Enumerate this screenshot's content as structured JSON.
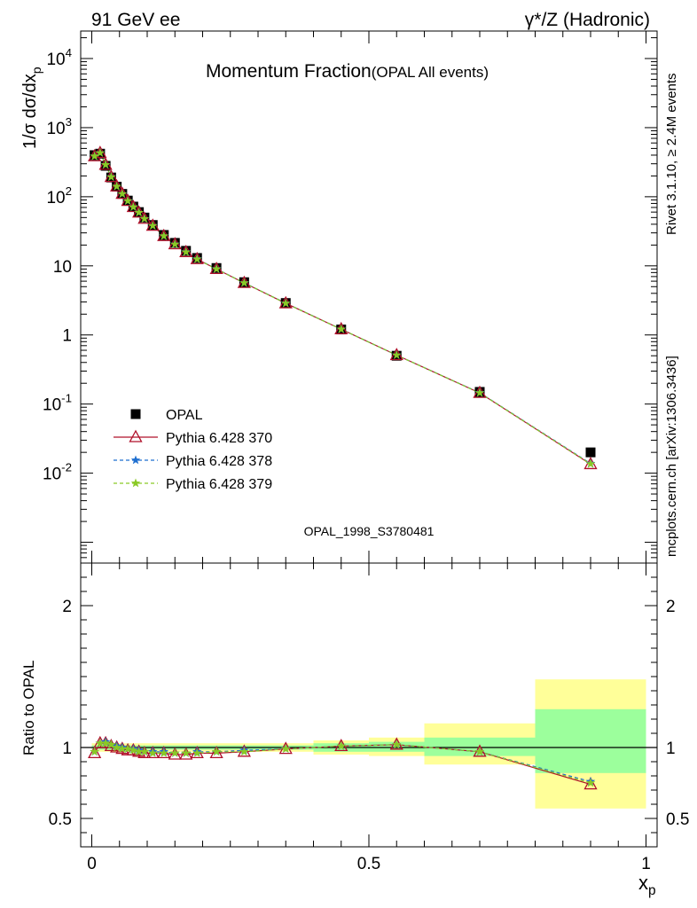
{
  "header": {
    "left": "91 GeV ee",
    "right": "γ*/Z (Hadronic)"
  },
  "side_labels": {
    "top": "Rivet 3.1.10, ≥ 2.4M events",
    "bottom": "mcplots.cern.ch [arXiv:1306.3436]"
  },
  "chart_data": [
    {
      "type": "scatter",
      "title": "Momentum Fraction",
      "subtitle": "(OPAL All events)",
      "watermark": "OPAL_1998_S3780481",
      "ylabel": "1/σ dσ/dx_p",
      "xlim": [
        -0.02,
        1.02
      ],
      "ylim": [
        0.0005,
        25000
      ],
      "yscale": "log",
      "ytick_labels": [
        "10^-2",
        "10^-1",
        "1",
        "10",
        "10^2",
        "10^3",
        "10^4"
      ],
      "legend_position": "lower-left",
      "x": [
        0.005,
        0.015,
        0.025,
        0.035,
        0.045,
        0.055,
        0.065,
        0.075,
        0.085,
        0.095,
        0.11,
        0.13,
        0.15,
        0.17,
        0.19,
        0.225,
        0.275,
        0.35,
        0.45,
        0.55,
        0.7,
        0.9
      ],
      "series": [
        {
          "name": "OPAL",
          "marker": "square",
          "color": "#000000",
          "values": [
            400,
            420,
            280,
            190,
            140,
            110,
            88,
            72,
            60,
            50,
            39,
            28,
            21.5,
            16.5,
            13,
            9.3,
            5.8,
            2.9,
            1.2,
            0.5,
            0.15,
            0.02
          ]
        },
        {
          "name": "Pythia 6.428 370",
          "marker": "triangle",
          "color": "#b0102a",
          "dash": "none",
          "values": [
            385,
            430,
            290,
            193,
            141,
            110,
            87,
            71,
            59,
            48,
            38,
            27,
            20.5,
            15.8,
            12.5,
            9.0,
            5.65,
            2.87,
            1.21,
            0.51,
            0.145,
            0.0135
          ]
        },
        {
          "name": "Pythia 6.428 378",
          "marker": "star",
          "color": "#1f6fd0",
          "dash": "4,3",
          "values": [
            387,
            432,
            291,
            194,
            141,
            110,
            87,
            71,
            59,
            48,
            38,
            27,
            20.6,
            15.9,
            12.6,
            9.05,
            5.67,
            2.88,
            1.21,
            0.51,
            0.146,
            0.0138
          ]
        },
        {
          "name": "Pythia 6.428 379",
          "marker": "star",
          "color": "#8ac926",
          "dash": "4,3",
          "values": [
            386,
            431,
            290,
            193,
            141,
            110,
            87,
            71,
            59,
            48,
            38,
            27,
            20.5,
            15.8,
            12.5,
            9.0,
            5.66,
            2.87,
            1.21,
            0.51,
            0.145,
            0.0136
          ]
        }
      ]
    },
    {
      "type": "line",
      "ylabel": "Ratio to OPAL",
      "xlabel": "x_p",
      "xlim": [
        -0.02,
        1.02
      ],
      "ylim": [
        0.3,
        2.3
      ],
      "xticks": [
        0,
        0.5,
        1
      ],
      "xtick_labels": [
        "0",
        "0.5",
        "1"
      ],
      "yticks": [
        0.5,
        1,
        2
      ],
      "ytick_labels": [
        "0.5",
        "1",
        "2"
      ],
      "reference_line": 1,
      "bands": [
        {
          "x": [
            0.0,
            0.4
          ],
          "inner": [
            0.985,
            1.015
          ],
          "outer": [
            0.97,
            1.03
          ]
        },
        {
          "x": [
            0.4,
            0.5
          ],
          "inner": [
            0.97,
            1.03
          ],
          "outer": [
            0.95,
            1.05
          ]
        },
        {
          "x": [
            0.5,
            0.6
          ],
          "inner": [
            0.97,
            1.04
          ],
          "outer": [
            0.94,
            1.07
          ]
        },
        {
          "x": [
            0.6,
            0.8
          ],
          "inner": [
            0.94,
            1.07
          ],
          "outer": [
            0.88,
            1.17
          ]
        },
        {
          "x": [
            0.8,
            1.0
          ],
          "inner": [
            0.82,
            1.27
          ],
          "outer": [
            0.57,
            1.48
          ]
        }
      ],
      "band_colors": {
        "inner": "#9cff9c",
        "outer": "#ffff99"
      },
      "x": [
        0.005,
        0.015,
        0.025,
        0.035,
        0.045,
        0.055,
        0.065,
        0.075,
        0.085,
        0.095,
        0.11,
        0.13,
        0.15,
        0.17,
        0.19,
        0.225,
        0.275,
        0.35,
        0.45,
        0.55,
        0.7,
        0.9
      ],
      "series": [
        {
          "name": "Pythia 6.428 370",
          "marker": "triangle",
          "color": "#b0102a",
          "dash": "none",
          "values": [
            0.96,
            1.03,
            1.03,
            1.01,
            1.0,
            0.99,
            0.98,
            0.98,
            0.97,
            0.96,
            0.96,
            0.96,
            0.95,
            0.95,
            0.96,
            0.96,
            0.97,
            0.99,
            1.01,
            1.02,
            0.97,
            0.74
          ]
        },
        {
          "name": "Pythia 6.428 378",
          "marker": "star",
          "color": "#1f6fd0",
          "dash": "4,3",
          "values": [
            0.97,
            1.03,
            1.04,
            1.02,
            1.01,
            1.0,
            0.99,
            0.99,
            0.98,
            0.97,
            0.97,
            0.97,
            0.96,
            0.96,
            0.97,
            0.97,
            0.98,
            0.99,
            1.01,
            1.02,
            0.97,
            0.76
          ]
        },
        {
          "name": "Pythia 6.428 379",
          "marker": "star",
          "color": "#8ac926",
          "dash": "4,3",
          "values": [
            0.97,
            1.03,
            1.03,
            1.02,
            1.0,
            0.99,
            0.99,
            0.98,
            0.97,
            0.97,
            0.96,
            0.96,
            0.96,
            0.96,
            0.96,
            0.97,
            0.97,
            0.99,
            1.01,
            1.02,
            0.97,
            0.75
          ]
        }
      ]
    }
  ]
}
